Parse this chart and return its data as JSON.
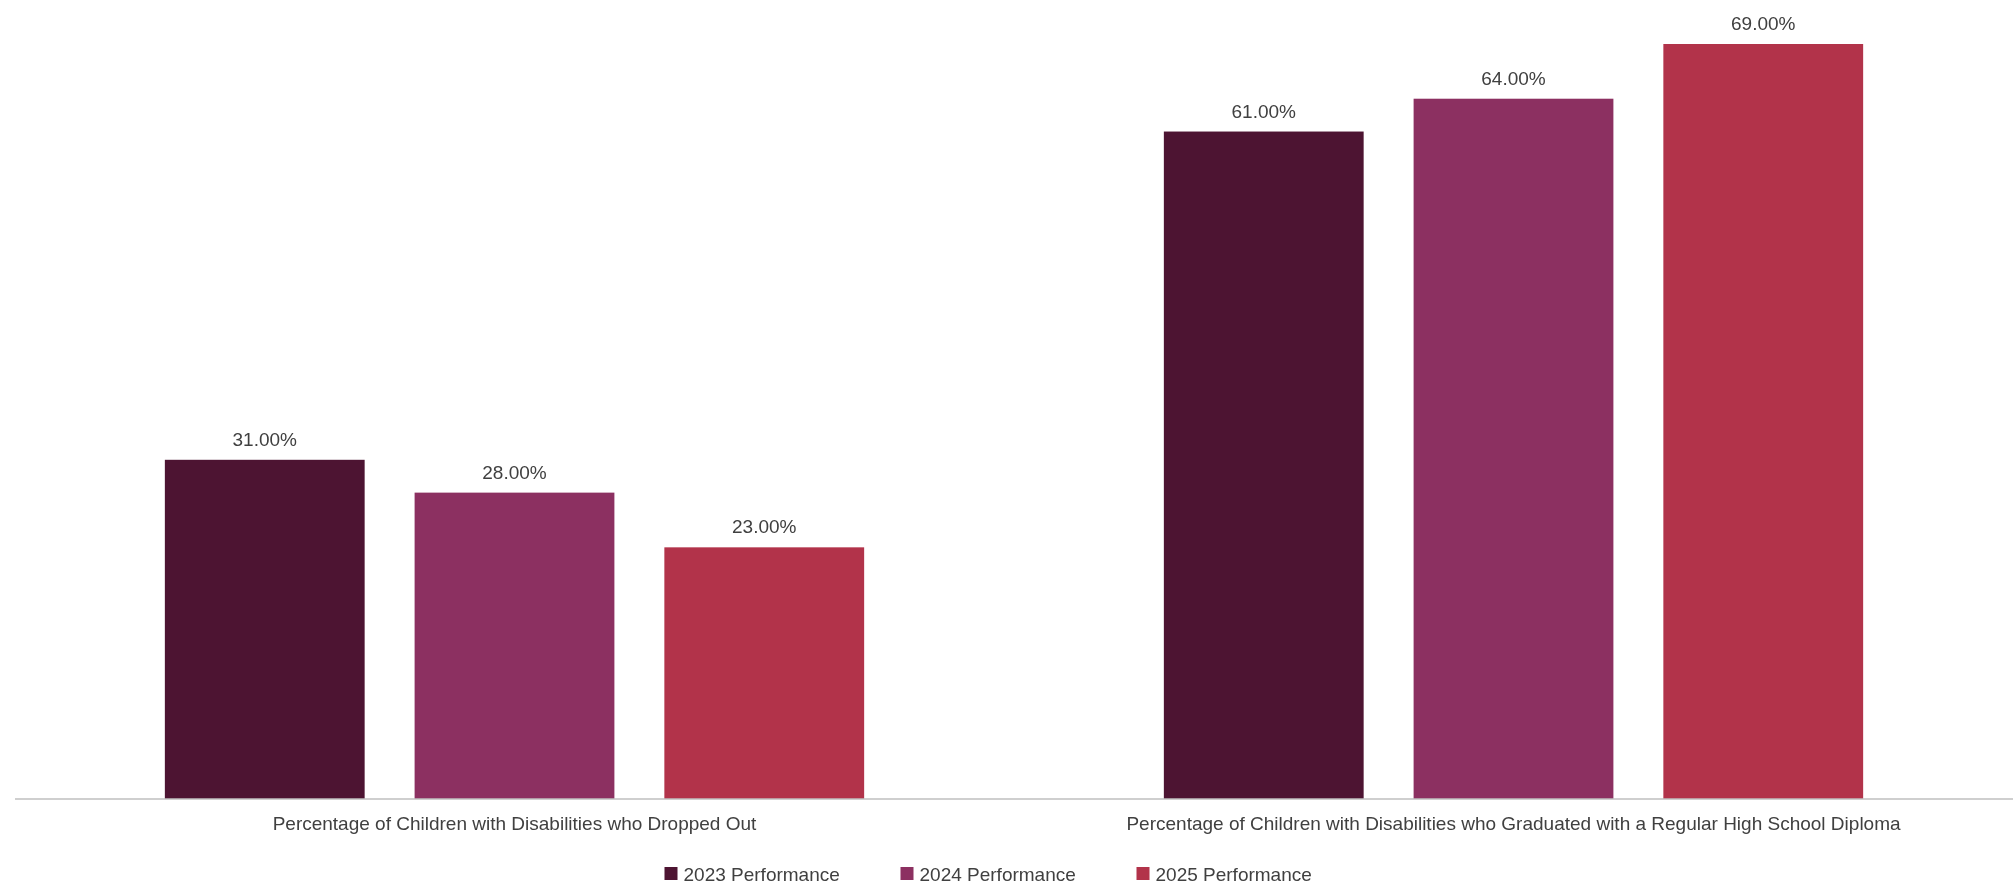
{
  "chart_data": {
    "type": "bar",
    "categories": [
      "Percentage of Children with Disabilities who Dropped Out",
      "Percentage of Children with Disabilities who Graduated with a Regular High School Diploma"
    ],
    "series": [
      {
        "name": "2023 Performance",
        "color": "#4d1432",
        "values": [
          31,
          61
        ],
        "value_labels": [
          "31.00%",
          "61.00%"
        ]
      },
      {
        "name": "2024 Performance",
        "color": "#8c3061",
        "values": [
          28,
          64
        ],
        "value_labels": [
          "28.00%",
          "64.00%"
        ]
      },
      {
        "name": "2025 Performance",
        "color": "#b2334a",
        "values": [
          23,
          69
        ],
        "value_labels": [
          "23.00%",
          "69.00%"
        ]
      }
    ],
    "legend": "bottom"
  }
}
